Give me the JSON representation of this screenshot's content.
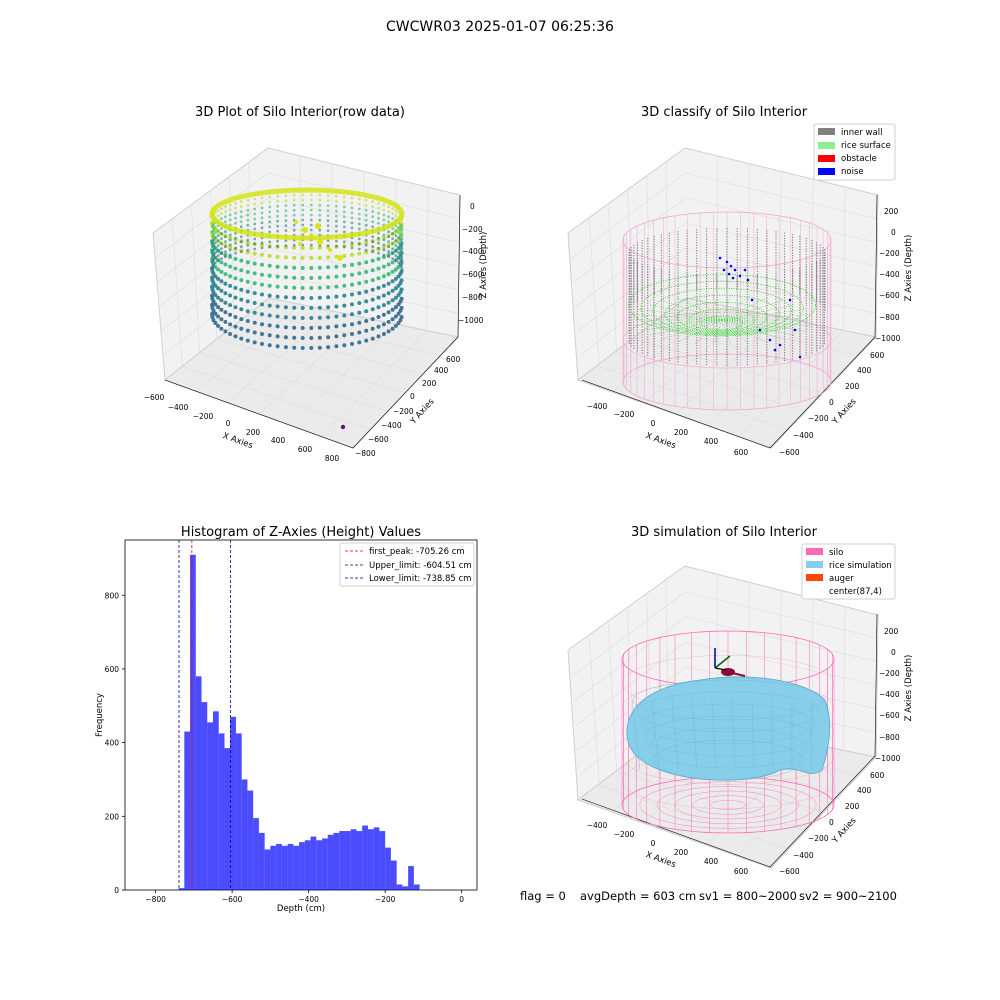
{
  "figure": {
    "suptitle": "CWCWR03 2025-01-07 06:25:36",
    "status": {
      "flag": "flag = 0",
      "avg_depth": "avgDepth = 603 cm",
      "sv1": "sv1 = 800~2000",
      "sv2": "sv2 = 900~2100"
    }
  },
  "colors": {
    "hist_bar": "#0000ff",
    "first_peak": "#ff0000",
    "limit_line": "#00008b",
    "inner_wall": "#808080",
    "rice_surface": "#90ee90",
    "obstacle": "#ff0000",
    "noise": "#0000ff",
    "silo": "#ff69b4",
    "rice_simulation": "#87ceeb",
    "auger": "#ff4500",
    "pane": "#f2f2f2"
  },
  "plots3d": [
    {
      "title": "3D Plot of Silo Interior(row data)",
      "xlabel": "X Axies",
      "ylabel": "Y Axies",
      "zlabel": "Z Axies (Depth)",
      "xticks": [
        "−600",
        "−400",
        "−200",
        "0",
        "200",
        "400",
        "600",
        "800"
      ],
      "yticks": [
        "−800",
        "−600",
        "−400",
        "−200",
        "0",
        "200",
        "400",
        "600"
      ],
      "zticks": [
        "0",
        "−200",
        "−400",
        "−600",
        "−800",
        "−1000"
      ]
    },
    {
      "title": "3D classify of Silo Interior",
      "xlabel": "X Axies",
      "ylabel": "Y Axies",
      "zlabel": "Z Axies (Depth)",
      "xticks": [
        "−400",
        "−200",
        "0",
        "200",
        "400",
        "600"
      ],
      "yticks": [
        "−600",
        "−400",
        "−200",
        "0",
        "200",
        "400",
        "600"
      ],
      "zticks": [
        "200",
        "0",
        "−200",
        "−400",
        "−600",
        "−800",
        "−1000"
      ],
      "legend": [
        "inner wall",
        "rice surface",
        "obstacle",
        "noise"
      ]
    },
    {
      "title": "3D simulation of Silo Interior",
      "xlabel": "X Axies",
      "ylabel": "Y Axies",
      "zlabel": "Z Axies (Depth)",
      "xticks": [
        "−400",
        "−200",
        "0",
        "200",
        "400",
        "600"
      ],
      "yticks": [
        "−600",
        "−400",
        "−200",
        "0",
        "200",
        "400",
        "600"
      ],
      "zticks": [
        "200",
        "0",
        "−200",
        "−400",
        "−600",
        "−800",
        "−1000"
      ],
      "legend": [
        "silo",
        "rice simulation",
        "auger",
        "center(87,4)"
      ]
    }
  ],
  "chart_data": {
    "type": "bar",
    "title": "Histogram of Z-Axies (Height) Values",
    "xlabel": "Depth (cm)",
    "ylabel": "Frequency",
    "xlim": [
      -880,
      40
    ],
    "ylim": [
      0,
      950
    ],
    "xticks": [
      -800,
      -600,
      -400,
      -200,
      0
    ],
    "yticks": [
      0,
      200,
      400,
      600,
      800
    ],
    "bin_start": -740,
    "bin_width": 15,
    "values": [
      5,
      430,
      910,
      580,
      510,
      455,
      485,
      425,
      385,
      470,
      425,
      300,
      270,
      195,
      155,
      110,
      120,
      125,
      120,
      125,
      120,
      130,
      135,
      145,
      135,
      140,
      150,
      155,
      160,
      160,
      165,
      160,
      175,
      165,
      170,
      160,
      115,
      80,
      15,
      10,
      65,
      15
    ],
    "lines": [
      {
        "label": "first_peak: -705.26 cm",
        "x": -705.26,
        "color": "#ff0000"
      },
      {
        "label": "Upper_limit: -604.51 cm",
        "x": -604.51,
        "color": "#00008b"
      },
      {
        "label": "Lower_limit: -738.85 cm",
        "x": -738.85,
        "color": "#00008b"
      }
    ]
  }
}
